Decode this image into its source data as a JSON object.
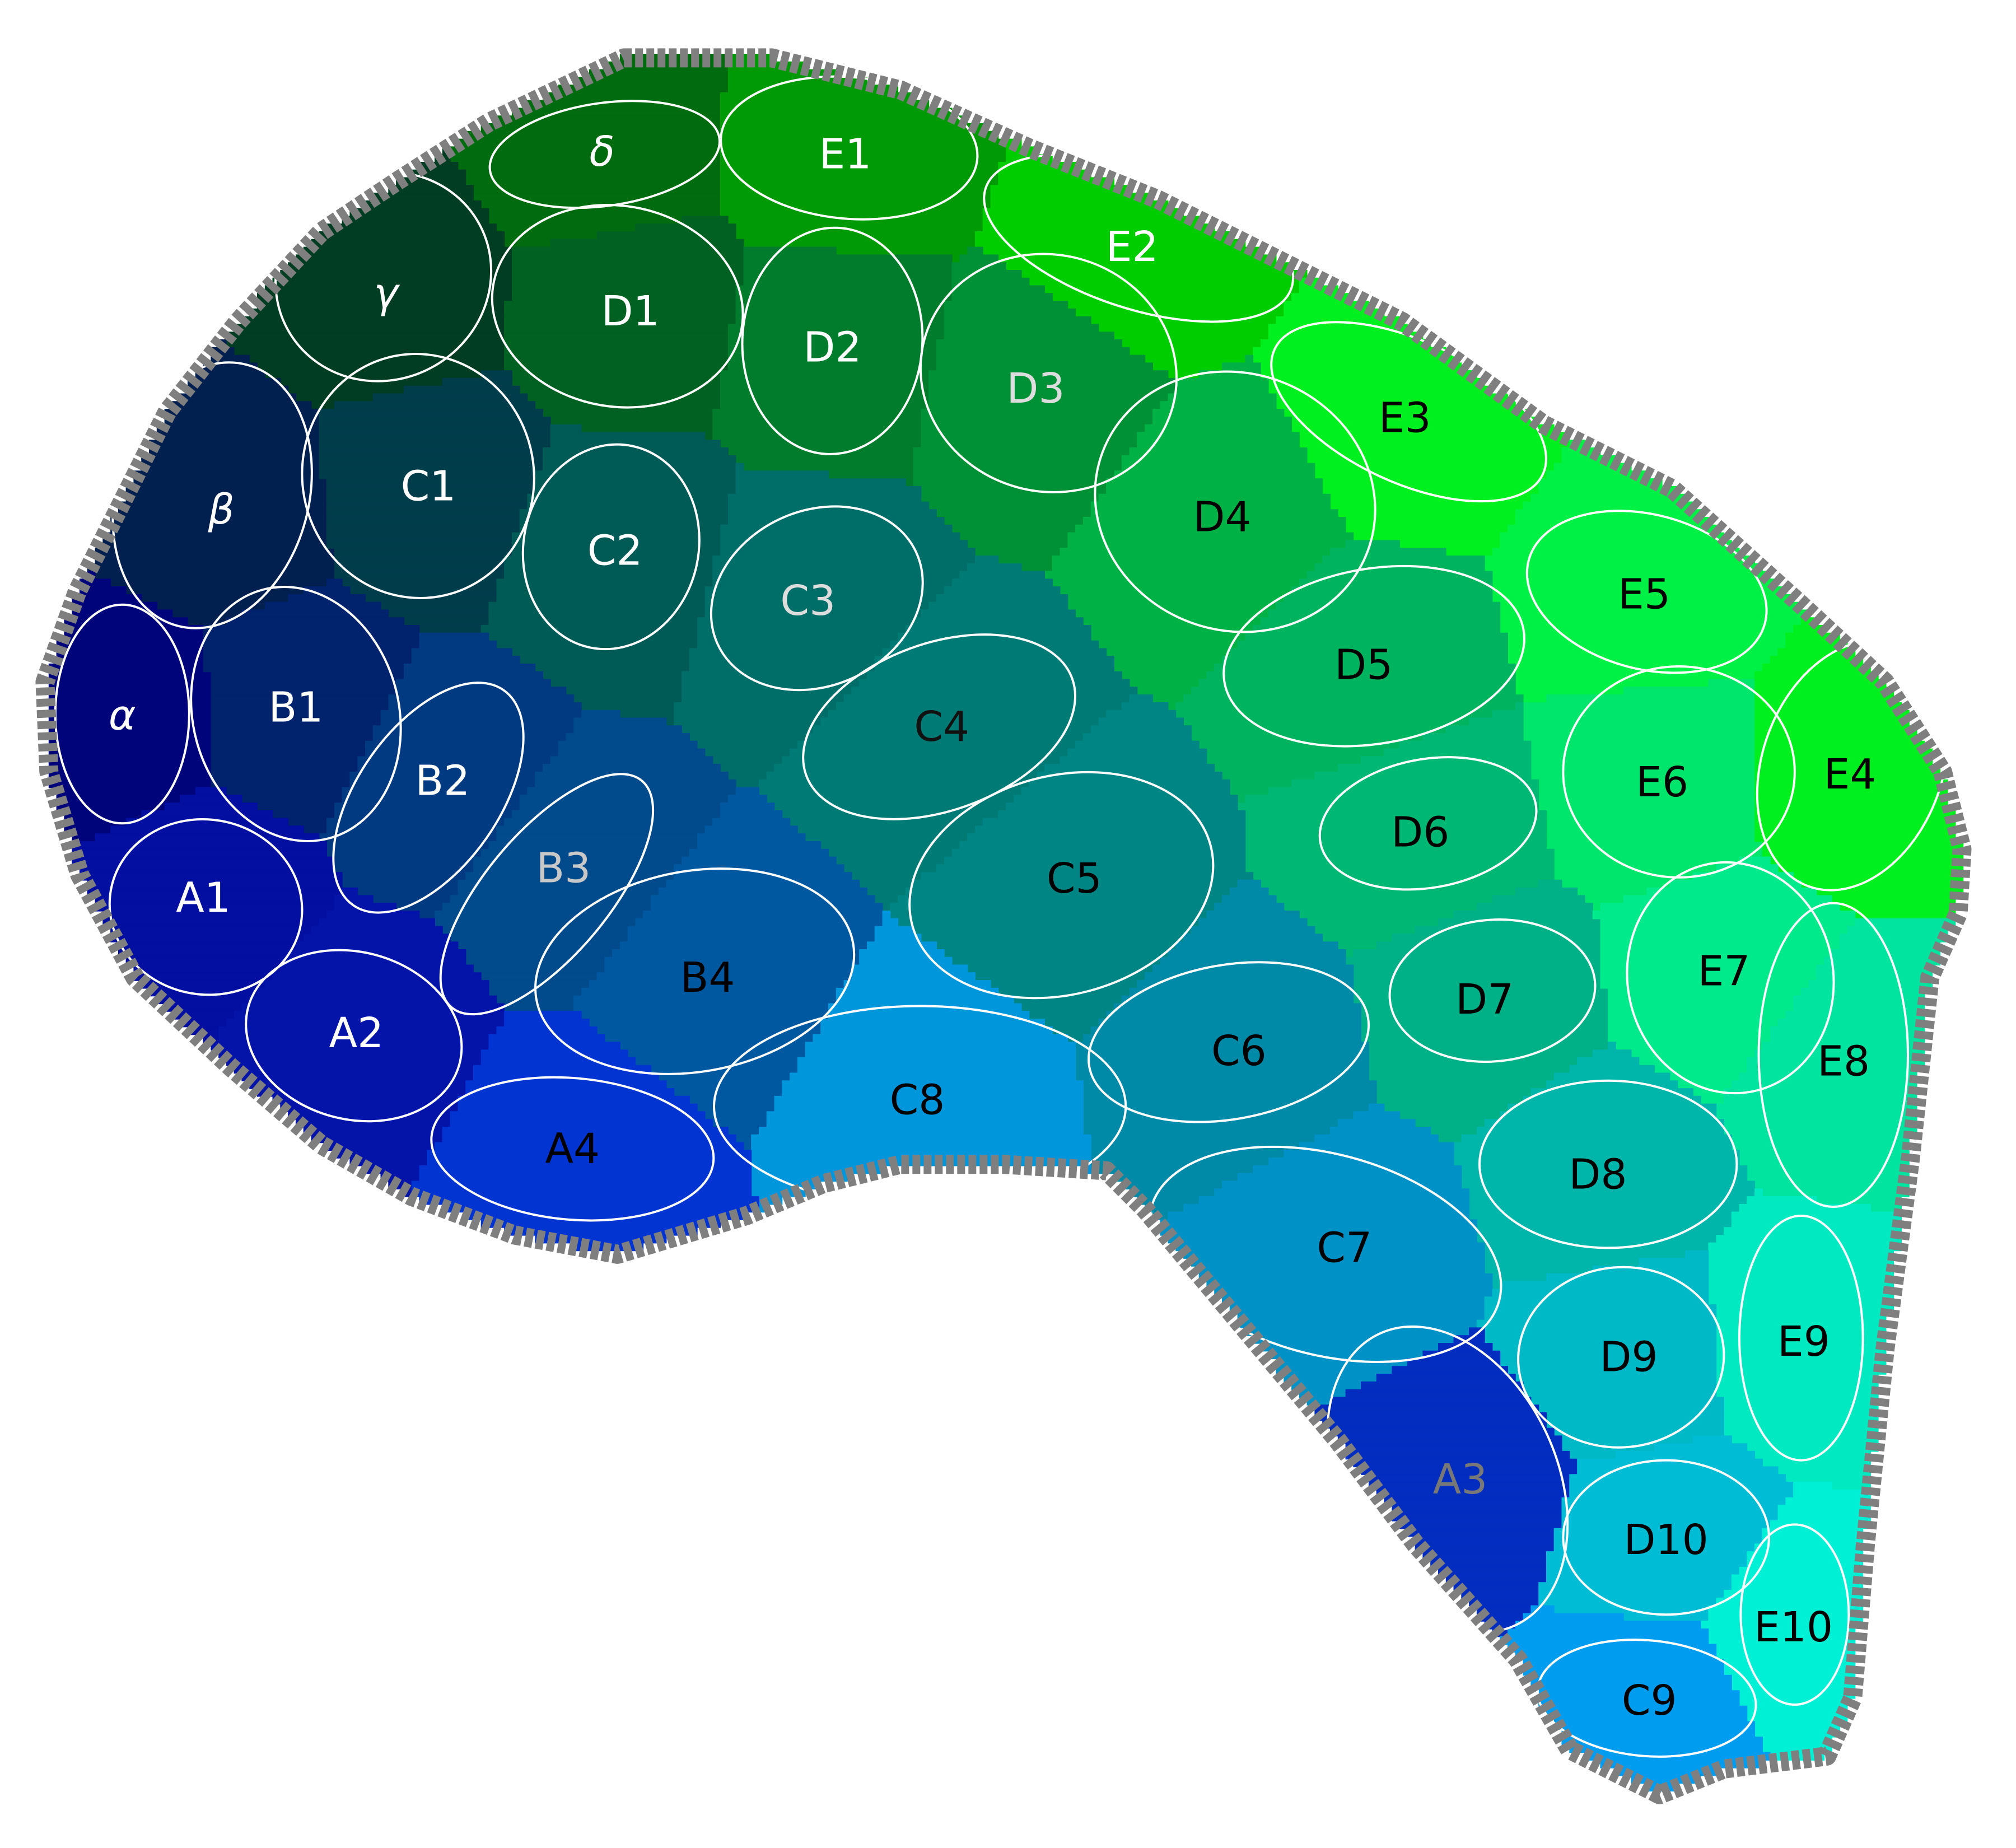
{
  "colors": {
    "outer_border": "#7f7f7f",
    "region_outline": "#000000",
    "barrel_outline": "#ffffff"
  },
  "regions": [
    {
      "label": "δ",
      "fill": "#006b0f",
      "label_color": "#ffffff",
      "greek": true
    },
    {
      "label": "E1",
      "fill": "#009a07",
      "label_color": "#ffffff"
    },
    {
      "label": "E2",
      "fill": "#00cd00",
      "label_color": "#ffffff"
    },
    {
      "label": "γ",
      "fill": "#003d22",
      "label_color": "#ffffff",
      "greek": true
    },
    {
      "label": "D1",
      "fill": "#006123",
      "label_color": "#ffffff"
    },
    {
      "label": "D2",
      "fill": "#007c2c",
      "label_color": "#ffffff"
    },
    {
      "label": "D3",
      "fill": "#009136",
      "label_color": "#dddddd"
    },
    {
      "label": "E3",
      "fill": "#00ef1e",
      "label_color": "#000000"
    },
    {
      "label": "β",
      "fill": "#02204f",
      "label_color": "#ffffff",
      "greek": true
    },
    {
      "label": "C1",
      "fill": "#003d4b",
      "label_color": "#ffffff"
    },
    {
      "label": "C2",
      "fill": "#005a55",
      "label_color": "#ffffff"
    },
    {
      "label": "C3",
      "fill": "#006e68",
      "label_color": "#dddddd"
    },
    {
      "label": "D4",
      "fill": "#00b246",
      "label_color": "#000000"
    },
    {
      "label": "E5",
      "fill": "#00f145",
      "label_color": "#000000"
    },
    {
      "label": "α",
      "fill": "#00047b",
      "label_color": "#ffffff",
      "greek": true
    },
    {
      "label": "B1",
      "fill": "#01226c",
      "label_color": "#ffffff"
    },
    {
      "label": "B2",
      "fill": "#013a80",
      "label_color": "#ffffff"
    },
    {
      "label": "C4",
      "fill": "#007a75",
      "label_color": "#111111"
    },
    {
      "label": "D5",
      "fill": "#00b45f",
      "label_color": "#000000"
    },
    {
      "label": "E6",
      "fill": "#00e56b",
      "label_color": "#000000"
    },
    {
      "label": "E4",
      "fill": "#00f01f",
      "label_color": "#000000"
    },
    {
      "label": "B3",
      "fill": "#014a8b",
      "label_color": "#c8c8c8"
    },
    {
      "label": "D6",
      "fill": "#00b774",
      "label_color": "#000000"
    },
    {
      "label": "A1",
      "fill": "#020fa0",
      "label_color": "#ffffff"
    },
    {
      "label": "C5",
      "fill": "#008585",
      "label_color": "#000000"
    },
    {
      "label": "B4",
      "fill": "#0059a0",
      "label_color": "#000000"
    },
    {
      "label": "D7",
      "fill": "#00b086",
      "label_color": "#000000"
    },
    {
      "label": "E7",
      "fill": "#00e98a",
      "label_color": "#000000"
    },
    {
      "label": "A2",
      "fill": "#0414a8",
      "label_color": "#ffffff"
    },
    {
      "label": "C6",
      "fill": "#008aa8",
      "label_color": "#000000"
    },
    {
      "label": "C8",
      "fill": "#0096dc",
      "label_color": "#000000"
    },
    {
      "label": "E8",
      "fill": "#00e4a0",
      "label_color": "#000000"
    },
    {
      "label": "A4",
      "fill": "#0234d1",
      "label_color": "#000000"
    },
    {
      "label": "D8",
      "fill": "#00b5aa",
      "label_color": "#000000"
    },
    {
      "label": "C7",
      "fill": "#0092c6",
      "label_color": "#000000"
    },
    {
      "label": "E9",
      "fill": "#00e9c0",
      "label_color": "#000000"
    },
    {
      "label": "D9",
      "fill": "#00b9c6",
      "label_color": "#000000"
    },
    {
      "label": "A3",
      "fill": "#032dbf",
      "label_color": "#787878"
    },
    {
      "label": "D10",
      "fill": "#00bcd4",
      "label_color": "#000000"
    },
    {
      "label": "E10",
      "fill": "#00f0d6",
      "label_color": "#000000"
    },
    {
      "label": "C9",
      "fill": "#009cf0",
      "label_color": "#000000"
    }
  ]
}
